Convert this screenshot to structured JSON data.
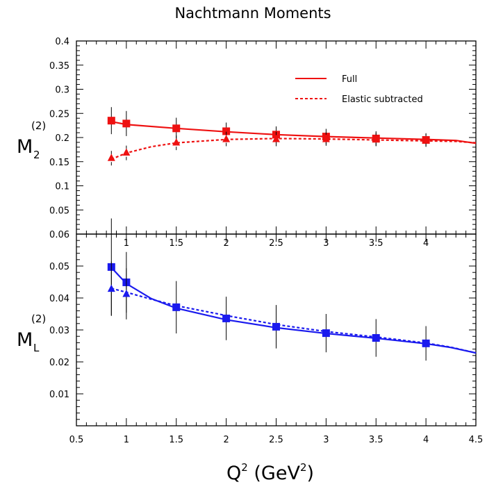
{
  "figure": {
    "title": "Nachtmann Moments",
    "xlabel": {
      "base": "Q",
      "sup": "2",
      "unit_open": " (GeV",
      "unit_sup": "2",
      "unit_close": ")"
    },
    "legend": {
      "full": "Full",
      "elastic": "Elastic subtracted",
      "position": "top-right of upper panel"
    }
  },
  "colors": {
    "top_series": "#ee1111",
    "bottom_series": "#1a1aee",
    "axis": "#000000"
  },
  "chart_data": [
    {
      "type": "line",
      "panel": "upper",
      "ylabel": {
        "base": "M",
        "sub": "2",
        "sup": "(2)"
      },
      "xlim": [
        0.5,
        4.5
      ],
      "ylim": [
        0,
        0.4
      ],
      "yticks": [
        "0.05",
        "0.1",
        "0.15",
        "0.2",
        "0.25",
        "0.3",
        "0.35",
        "0.4"
      ],
      "xticks": [
        "1",
        "1.5",
        "2",
        "2.5",
        "3",
        "3.5",
        "4"
      ],
      "series": [
        {
          "name": "Full",
          "style": "solid",
          "marker": "square",
          "points": [
            {
              "x": 0.85,
              "y": 0.235,
              "err": 0.028
            },
            {
              "x": 1.0,
              "y": 0.229,
              "err": 0.026
            },
            {
              "x": 1.5,
              "y": 0.219,
              "err": 0.022
            },
            {
              "x": 2.0,
              "y": 0.213,
              "err": 0.018
            },
            {
              "x": 2.5,
              "y": 0.206,
              "err": 0.017
            },
            {
              "x": 3.0,
              "y": 0.202,
              "err": 0.016
            },
            {
              "x": 3.5,
              "y": 0.198,
              "err": 0.015
            },
            {
              "x": 4.0,
              "y": 0.195,
              "err": 0.014
            }
          ],
          "curve": [
            [
              0.85,
              0.233
            ],
            [
              1.0,
              0.227
            ],
            [
              1.5,
              0.219
            ],
            [
              2.0,
              0.212
            ],
            [
              2.5,
              0.206
            ],
            [
              3.0,
              0.202
            ],
            [
              3.5,
              0.199
            ],
            [
              4.0,
              0.196
            ],
            [
              4.3,
              0.194
            ],
            [
              4.5,
              0.188
            ]
          ]
        },
        {
          "name": "Elastic subtracted",
          "style": "dashed",
          "marker": "triangle",
          "points": [
            {
              "x": 0.85,
              "y": 0.158,
              "err": 0.016
            },
            {
              "x": 1.0,
              "y": 0.169,
              "err": 0.016
            },
            {
              "x": 1.5,
              "y": 0.19,
              "err": 0.016
            },
            {
              "x": 2.0,
              "y": 0.197,
              "err": 0.015
            },
            {
              "x": 2.5,
              "y": 0.197,
              "err": 0.015
            },
            {
              "x": 3.0,
              "y": 0.197,
              "err": 0.014
            },
            {
              "x": 3.5,
              "y": 0.196,
              "err": 0.014
            },
            {
              "x": 4.0,
              "y": 0.194,
              "err": 0.013
            }
          ],
          "curve": [
            [
              0.85,
              0.155
            ],
            [
              1.0,
              0.168
            ],
            [
              1.25,
              0.181
            ],
            [
              1.5,
              0.189
            ],
            [
              2.0,
              0.196
            ],
            [
              2.5,
              0.198
            ],
            [
              3.0,
              0.197
            ],
            [
              3.5,
              0.195
            ],
            [
              4.0,
              0.193
            ],
            [
              4.3,
              0.192
            ],
            [
              4.5,
              0.189
            ]
          ]
        }
      ]
    },
    {
      "type": "line",
      "panel": "lower",
      "ylabel": {
        "base": "M",
        "sub": "L",
        "sup": "(2)"
      },
      "xlim": [
        0.5,
        4.5
      ],
      "ylim": [
        0,
        0.06
      ],
      "yticks": [
        "0.01",
        "0.02",
        "0.03",
        "0.04",
        "0.05",
        "0.06"
      ],
      "xticks": [
        "0.5",
        "1",
        "1.5",
        "2",
        "2.5",
        "3",
        "3.5",
        "4",
        "4.5"
      ],
      "series": [
        {
          "name": "Full",
          "style": "solid",
          "marker": "square",
          "points": [
            {
              "x": 0.85,
              "y": 0.0497,
              "err": 0.0152
            },
            {
              "x": 1.0,
              "y": 0.0449,
              "err": 0.0095
            },
            {
              "x": 1.5,
              "y": 0.0371,
              "err": 0.0082
            },
            {
              "x": 2.0,
              "y": 0.0336,
              "err": 0.0068
            },
            {
              "x": 2.5,
              "y": 0.031,
              "err": 0.0068
            },
            {
              "x": 3.0,
              "y": 0.029,
              "err": 0.006
            },
            {
              "x": 3.5,
              "y": 0.0275,
              "err": 0.0059
            },
            {
              "x": 4.0,
              "y": 0.0258,
              "err": 0.0054
            }
          ],
          "curve": [
            [
              0.85,
              0.0495
            ],
            [
              1.0,
              0.0445
            ],
            [
              1.25,
              0.0398
            ],
            [
              1.5,
              0.0368
            ],
            [
              2.0,
              0.0332
            ],
            [
              2.5,
              0.0307
            ],
            [
              3.0,
              0.0289
            ],
            [
              3.5,
              0.0274
            ],
            [
              4.0,
              0.0257
            ],
            [
              4.25,
              0.0245
            ],
            [
              4.5,
              0.0228
            ]
          ]
        },
        {
          "name": "Elastic subtracted",
          "style": "dashed",
          "marker": "triangle",
          "points": [
            {
              "x": 0.85,
              "y": 0.0429,
              "err": 0.0085
            },
            {
              "x": 1.0,
              "y": 0.0413,
              "err": 0.008
            }
          ],
          "curve": [
            [
              0.85,
              0.043
            ],
            [
              1.0,
              0.0418
            ],
            [
              1.25,
              0.0396
            ],
            [
              1.5,
              0.0376
            ],
            [
              2.0,
              0.0345
            ],
            [
              2.5,
              0.0317
            ],
            [
              3.0,
              0.0295
            ],
            [
              3.5,
              0.0278
            ],
            [
              4.0,
              0.0259
            ],
            [
              4.25,
              0.0246
            ],
            [
              4.5,
              0.0228
            ]
          ]
        }
      ]
    }
  ]
}
